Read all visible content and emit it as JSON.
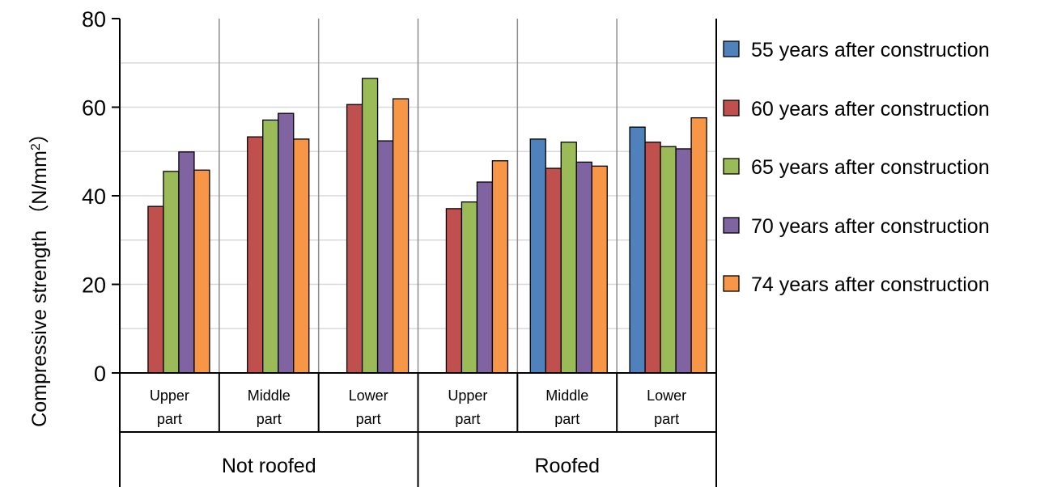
{
  "chart_data": {
    "type": "bar",
    "ylabel": "Compressive strength （N/mm",
    "ylabel_sup": "2",
    "ylabel_close": "）",
    "ylim": [
      0,
      80
    ],
    "yticks": [
      "0",
      "20",
      "40",
      "60",
      "80"
    ],
    "grid": "horizontal minor lines every 10",
    "legend_position": "right",
    "groups": [
      {
        "label": "Not roofed",
        "categories": [
          [
            "Upper",
            "part"
          ],
          [
            "Middle",
            "part"
          ],
          [
            "Lower",
            "part"
          ]
        ]
      },
      {
        "label": "Roofed",
        "categories": [
          [
            "Upper",
            "part"
          ],
          [
            "Middle",
            "part"
          ],
          [
            "Lower",
            "part"
          ]
        ]
      }
    ],
    "categories": [
      "Not roofed / Upper part",
      "Not roofed / Middle part",
      "Not roofed / Lower part",
      "Roofed / Upper part",
      "Roofed / Middle part",
      "Roofed / Lower part"
    ],
    "series": [
      {
        "name": "55 years after construction",
        "color": "#4f81bd",
        "values": [
          null,
          null,
          null,
          null,
          52.8,
          55.5
        ]
      },
      {
        "name": "60 years after construction",
        "color": "#c0504d",
        "values": [
          37.6,
          53.3,
          60.6,
          37.1,
          46.2,
          52.1
        ]
      },
      {
        "name": "65 years after construction",
        "color": "#9bbb59",
        "values": [
          45.5,
          57.1,
          66.5,
          38.6,
          52.1,
          51.1
        ]
      },
      {
        "name": "70 years after construction",
        "color": "#8064a2",
        "values": [
          49.9,
          58.6,
          52.4,
          43.1,
          47.6,
          50.6
        ]
      },
      {
        "name": "74 years after construction",
        "color": "#f79646",
        "values": [
          45.8,
          52.8,
          61.9,
          47.9,
          46.7,
          57.6
        ]
      }
    ]
  }
}
